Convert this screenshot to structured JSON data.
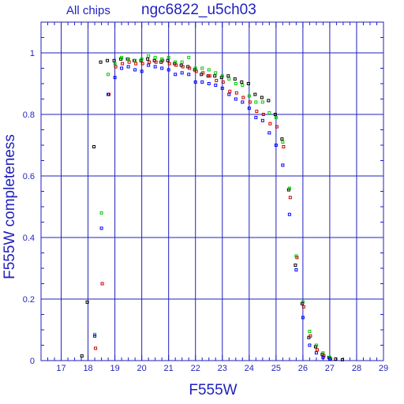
{
  "header": {
    "left_label": "All chips",
    "right_label": "ngc6822_u5ch03"
  },
  "chart_data": {
    "type": "scatter",
    "title": "ngc6822_u5ch03",
    "subtitle": "All chips",
    "xlabel": "F555W",
    "ylabel": "F555W completeness",
    "xlim": [
      16.25,
      29.0
    ],
    "ylim": [
      0,
      1.1
    ],
    "grid": true,
    "x_ticks": [
      17,
      18,
      19,
      20,
      21,
      22,
      23,
      24,
      25,
      26,
      27,
      28,
      29
    ],
    "y_ticks": [
      0,
      0.2,
      0.4,
      0.6,
      0.8,
      1
    ],
    "colors": {
      "axes": "#1f1fbf",
      "series_black": "#000000",
      "series_red": "#d00000",
      "series_green": "#00c800",
      "series_blue": "#0000ff"
    },
    "series": [
      {
        "color": "#000000",
        "x": [
          17.8,
          18.0,
          18.25,
          18.5,
          18.75,
          19.0,
          19.25,
          19.5,
          19.75,
          20.0,
          20.25,
          20.5,
          20.75,
          21.0,
          21.25,
          21.5,
          21.75,
          22.0,
          22.25,
          22.5,
          22.75,
          23.0,
          23.25,
          23.5,
          23.75,
          24.0,
          24.25,
          24.5,
          24.75,
          25.0,
          25.25,
          25.5,
          25.75,
          26.0,
          26.25,
          26.5,
          26.75,
          27.0,
          27.25,
          27.5
        ],
        "y": [
          0.015,
          0.19,
          0.695,
          0.97,
          0.975,
          0.975,
          0.98,
          0.98,
          0.975,
          0.975,
          0.98,
          0.975,
          0.97,
          0.975,
          0.965,
          0.96,
          0.955,
          0.945,
          0.93,
          0.925,
          0.925,
          0.92,
          0.925,
          0.915,
          0.905,
          0.9,
          0.865,
          0.855,
          0.845,
          0.8,
          0.72,
          0.555,
          0.31,
          0.185,
          0.075,
          0.045,
          0.02,
          0.01,
          0.005,
          0.003
        ]
      },
      {
        "color": "#d00000",
        "x": [
          18.25,
          18.5,
          18.75,
          19.0,
          19.25,
          19.5,
          19.75,
          20.0,
          20.25,
          20.5,
          20.75,
          21.0,
          21.25,
          21.5,
          21.75,
          22.0,
          22.25,
          22.5,
          22.75,
          23.0,
          23.25,
          23.5,
          23.75,
          24.0,
          24.25,
          24.5,
          24.75,
          25.0,
          25.25,
          25.5,
          25.75,
          26.0,
          26.25,
          26.5,
          26.75,
          27.0
        ],
        "y": [
          0.04,
          0.25,
          0.865,
          0.955,
          0.965,
          0.97,
          0.965,
          0.965,
          0.97,
          0.97,
          0.975,
          0.965,
          0.96,
          0.955,
          0.95,
          0.94,
          0.935,
          0.925,
          0.91,
          0.905,
          0.875,
          0.87,
          0.855,
          0.84,
          0.81,
          0.8,
          0.77,
          0.76,
          0.695,
          0.53,
          0.335,
          0.175,
          0.08,
          0.035,
          0.015,
          0.005
        ]
      },
      {
        "color": "#00c800",
        "x": [
          18.25,
          18.5,
          18.75,
          19.0,
          19.25,
          19.5,
          19.75,
          20.0,
          20.25,
          20.5,
          20.75,
          21.0,
          21.25,
          21.5,
          21.75,
          22.0,
          22.25,
          22.5,
          22.75,
          23.0,
          23.25,
          23.5,
          23.75,
          24.0,
          24.25,
          24.5,
          24.75,
          25.0,
          25.25,
          25.5,
          25.75,
          26.0,
          26.25,
          26.5,
          26.75,
          27.0
        ],
        "y": [
          0.085,
          0.48,
          0.93,
          0.965,
          0.985,
          0.98,
          0.975,
          0.98,
          0.99,
          0.985,
          0.98,
          0.985,
          0.97,
          0.97,
          0.985,
          0.95,
          0.95,
          0.945,
          0.935,
          0.925,
          0.915,
          0.9,
          0.895,
          0.86,
          0.84,
          0.84,
          0.805,
          0.79,
          0.71,
          0.56,
          0.34,
          0.19,
          0.095,
          0.05,
          0.025,
          0.01
        ]
      },
      {
        "color": "#0000ff",
        "x": [
          18.25,
          18.5,
          18.75,
          19.0,
          19.25,
          19.5,
          19.75,
          20.0,
          20.25,
          20.5,
          20.75,
          21.0,
          21.25,
          21.5,
          21.75,
          22.0,
          22.25,
          22.5,
          22.75,
          23.0,
          23.25,
          23.5,
          23.75,
          24.0,
          24.25,
          24.5,
          24.75,
          25.0,
          25.25,
          25.5,
          25.75,
          26.0,
          26.25,
          26.5,
          26.75,
          27.0
        ],
        "y": [
          0.08,
          0.43,
          0.865,
          0.92,
          0.95,
          0.955,
          0.945,
          0.94,
          0.96,
          0.955,
          0.95,
          0.945,
          0.93,
          0.935,
          0.93,
          0.905,
          0.905,
          0.9,
          0.895,
          0.885,
          0.865,
          0.85,
          0.84,
          0.82,
          0.79,
          0.78,
          0.74,
          0.7,
          0.635,
          0.475,
          0.295,
          0.14,
          0.05,
          0.025,
          0.01,
          0.005
        ]
      }
    ]
  }
}
